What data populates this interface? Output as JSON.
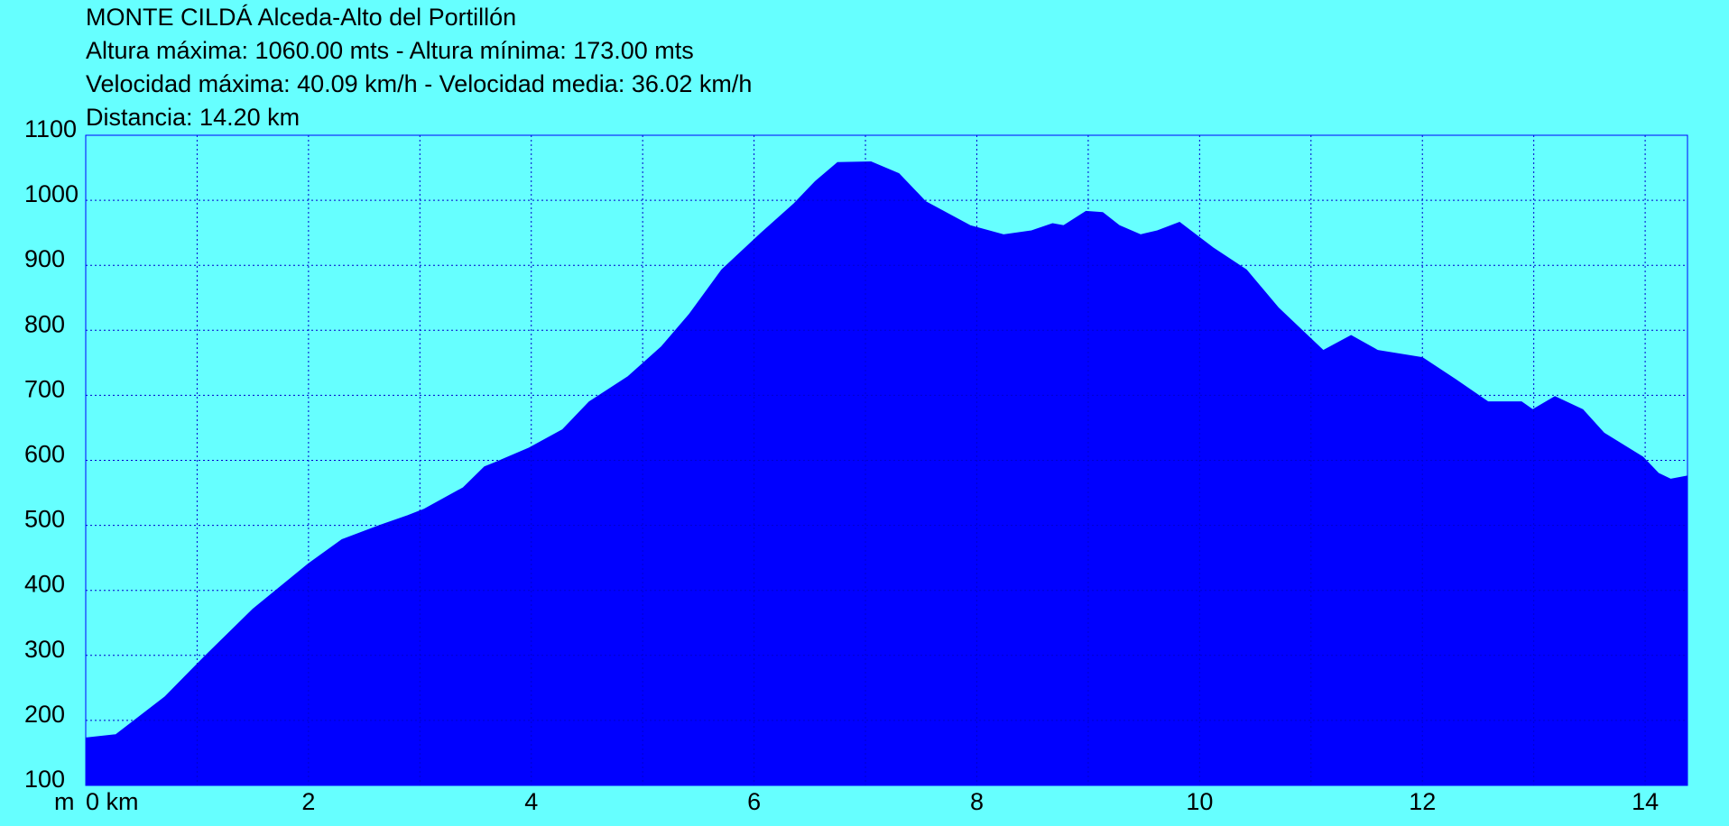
{
  "chart_data": {
    "type": "area",
    "title_lines": [
      "MONTE CILDÁ Alceda-Alto del Portillón",
      "Altura máxima: 1060.00 mts - Altura mínima: 173.00 mts",
      "Velocidad máxima: 40.09 km/h - Velocidad media: 36.02 km/h",
      "Distancia: 14.20 km"
    ],
    "yunit": "m",
    "x": [
      0,
      0.27,
      0.71,
      1.06,
      1.5,
      2.0,
      2.3,
      2.64,
      2.89,
      3.04,
      3.39,
      3.58,
      3.68,
      3.98,
      4.28,
      4.52,
      4.87,
      5.17,
      5.42,
      5.71,
      6.06,
      6.36,
      6.55,
      6.75,
      7.05,
      7.3,
      7.54,
      7.94,
      8.24,
      8.49,
      8.68,
      8.78,
      8.98,
      9.13,
      9.28,
      9.47,
      9.62,
      9.82,
      10.12,
      10.42,
      10.71,
      11.11,
      11.36,
      11.6,
      12.0,
      12.3,
      12.59,
      12.89,
      12.99,
      13.19,
      13.44,
      13.63,
      13.98,
      14.12,
      14.23,
      14.38
    ],
    "values": [
      173,
      178,
      236,
      297,
      371,
      441,
      478,
      500,
      515,
      525,
      558,
      590,
      597,
      619,
      647,
      690,
      729,
      775,
      825,
      893,
      949,
      995,
      1029,
      1058,
      1059,
      1041,
      998,
      961,
      947,
      953,
      964,
      961,
      983,
      981,
      961,
      947,
      953,
      966,
      927,
      893,
      834,
      769,
      792,
      769,
      758,
      724,
      690,
      690,
      678,
      698,
      678,
      642,
      605,
      580,
      571,
      576
    ],
    "color": "#0000ff",
    "xlim": [
      0,
      14.38
    ],
    "ylim": [
      100,
      1100
    ],
    "xticks": [
      {
        "value": 0,
        "label": "0 km"
      },
      2,
      4,
      6,
      8,
      10,
      12,
      14
    ],
    "xminor": [
      1,
      3,
      5,
      7,
      9,
      11,
      13
    ],
    "yticks": [
      100,
      200,
      300,
      400,
      500,
      600,
      700,
      800,
      900,
      1000,
      1100
    ],
    "grid": true
  }
}
